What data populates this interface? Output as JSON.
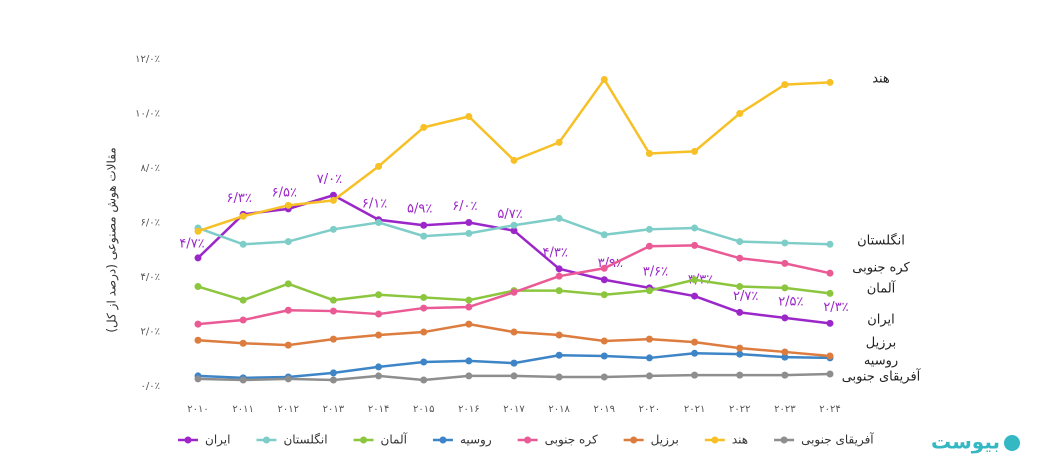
{
  "chart_data": {
    "type": "line",
    "y_label": "مقالات هوش مصنوعی (درصد از کل)",
    "categories": [
      "۲۰۱۰",
      "۲۰۱۱",
      "۲۰۱۲",
      "۲۰۱۳",
      "۲۰۱۴",
      "۲۰۱۵",
      "۲۰۱۶",
      "۲۰۱۷",
      "۲۰۱۸",
      "۲۰۱۹",
      "۲۰۲۰",
      "۲۰۲۱",
      "۲۰۲۲",
      "۲۰۲۳",
      "۲۰۲۴"
    ],
    "ylim": [
      0,
      12
    ],
    "yticks": [
      {
        "value": 0,
        "label": "۰/۰٪"
      },
      {
        "value": 2,
        "label": "۲/۰٪"
      },
      {
        "value": 4,
        "label": "۴/۰٪"
      },
      {
        "value": 6,
        "label": "۶/۰٪"
      },
      {
        "value": 8,
        "label": "۸/۰٪"
      },
      {
        "value": 10,
        "label": "۱۰/۰٪"
      },
      {
        "value": 12,
        "label": "۱۲/۰٪"
      }
    ],
    "grid": false,
    "legend": "bottom",
    "series": [
      {
        "name": "ایران",
        "color": "#9b27c9",
        "values": [
          4.7,
          6.3,
          6.5,
          7.0,
          6.1,
          5.9,
          6.0,
          5.7,
          4.3,
          3.9,
          3.6,
          3.3,
          2.7,
          2.5,
          2.3
        ],
        "value_labels": [
          "۴/۷٪",
          "۶/۳٪",
          "۶/۵٪",
          "۷/۰٪",
          "۶/۱٪",
          "۵/۹٪",
          "۶/۰٪",
          "۵/۷٪",
          "۴/۳٪",
          "۳/۹٪",
          "۳/۶٪",
          "۳/۳٪",
          "۲/۷٪",
          "۲/۵٪",
          "۲/۳٪"
        ]
      },
      {
        "name": "انگلستان",
        "color": "#7ecdc8",
        "values": [
          5.8,
          5.2,
          5.3,
          5.75,
          6.0,
          5.5,
          5.6,
          5.9,
          6.15,
          5.55,
          5.75,
          5.8,
          5.3,
          5.25,
          5.2
        ]
      },
      {
        "name": "آلمان",
        "color": "#8cc63f",
        "values": [
          3.65,
          3.15,
          3.75,
          3.15,
          3.35,
          3.25,
          3.15,
          3.5,
          3.5,
          3.35,
          3.5,
          3.9,
          3.65,
          3.6,
          3.4
        ]
      },
      {
        "name": "روسیه",
        "color": "#3d85c6",
        "values": [
          0.37,
          0.3,
          0.33,
          0.48,
          0.7,
          0.88,
          0.92,
          0.84,
          1.13,
          1.1,
          1.03,
          1.2,
          1.17,
          1.06,
          1.03
        ]
      },
      {
        "name": "کره جنوبی",
        "color": "#ea5a95",
        "values": [
          2.27,
          2.42,
          2.78,
          2.75,
          2.64,
          2.86,
          2.9,
          3.44,
          4.03,
          4.32,
          5.13,
          5.16,
          4.69,
          4.5,
          4.14
        ]
      },
      {
        "name": "برزیل",
        "color": "#dd7c3f",
        "values": [
          1.68,
          1.57,
          1.5,
          1.72,
          1.87,
          1.98,
          2.27,
          1.98,
          1.87,
          1.65,
          1.72,
          1.61,
          1.39,
          1.25,
          1.1
        ]
      },
      {
        "name": "هند",
        "color": "#f6c026",
        "values": [
          5.68,
          6.23,
          6.63,
          6.81,
          8.06,
          9.49,
          9.89,
          8.28,
          8.94,
          11.25,
          8.53,
          8.61,
          10.0,
          11.06,
          11.14
        ]
      },
      {
        "name": "آفریقای جنوبی",
        "color": "#8e8e8e",
        "values": [
          0.26,
          0.22,
          0.26,
          0.22,
          0.37,
          0.22,
          0.37,
          0.37,
          0.33,
          0.33,
          0.37,
          0.4,
          0.4,
          0.4,
          0.44
        ]
      }
    ]
  },
  "brand": "بیوست"
}
